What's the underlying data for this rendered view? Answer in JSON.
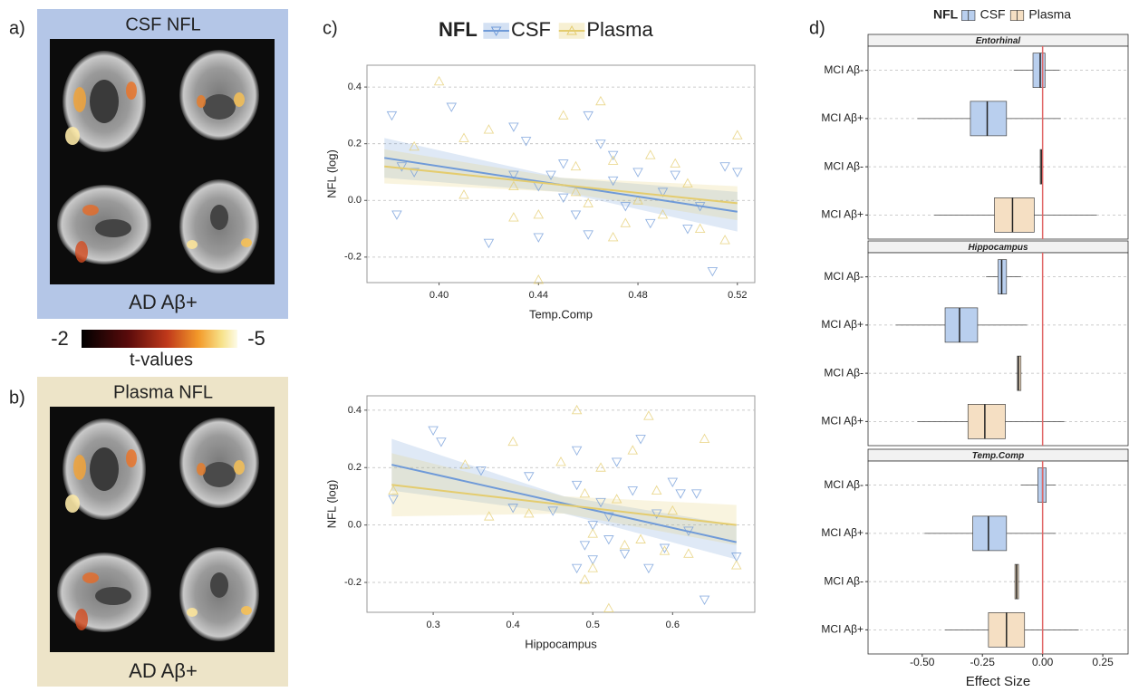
{
  "panel_labels": [
    "a)",
    "b)",
    "c)",
    "d)"
  ],
  "brain_maps": [
    {
      "title": "CSF NFL",
      "caption": "AD Aβ+"
    },
    {
      "title": "Plasma NFL",
      "caption": "AD Aβ+"
    }
  ],
  "colorbar": {
    "range": [
      -2,
      -5
    ],
    "label": "t-values"
  },
  "chart_data": [
    {
      "type": "scatter",
      "legend_title": "NFL",
      "x_label": "Temp.Comp",
      "y_label": "NFL (log)",
      "xlim": [
        0.371,
        0.527
      ],
      "ylim": [
        -0.29,
        0.477
      ],
      "xticks": [
        {
          "value": 0.4,
          "label": "0.40"
        },
        0.44,
        0.48,
        0.52
      ],
      "yticks": [
        0.4,
        0.2,
        {
          "value": 0,
          "label": "0.0"
        },
        -0.2
      ],
      "grid": "y",
      "series": [
        {
          "name": "CSF",
          "color": "#6f9ad8",
          "marker": "triangle-down",
          "x": [
            0.381,
            0.383,
            0.385,
            0.405,
            0.39,
            0.43,
            0.435,
            0.42,
            0.44,
            0.445,
            0.45,
            0.455,
            0.46,
            0.465,
            0.47,
            0.475,
            0.48,
            0.485,
            0.49,
            0.495,
            0.5,
            0.505,
            0.51,
            0.515,
            0.52,
            0.46,
            0.44,
            0.47,
            0.45,
            0.43
          ],
          "values": [
            0.3,
            -0.05,
            0.12,
            0.33,
            0.1,
            0.26,
            0.21,
            -0.15,
            0.05,
            0.09,
            0.13,
            -0.05,
            0.3,
            0.2,
            0.07,
            -0.02,
            0.1,
            -0.08,
            0.03,
            0.09,
            -0.1,
            -0.02,
            -0.25,
            0.12,
            0.1,
            -0.12,
            -0.13,
            0.16,
            0.01,
            0.09
          ],
          "fit": {
            "x": [
              0.378,
              0.52
            ],
            "values": [
              0.15,
              -0.04
            ]
          },
          "band": {
            "x": [
              0.378,
              0.449,
              0.52
            ],
            "lower": [
              0.08,
              0.03,
              -0.11
            ],
            "upper": [
              0.22,
              0.08,
              0.03
            ]
          }
        },
        {
          "name": "Plasma",
          "color": "#e4cc6e",
          "marker": "triangle-up",
          "x": [
            0.4,
            0.39,
            0.41,
            0.42,
            0.43,
            0.44,
            0.45,
            0.455,
            0.46,
            0.465,
            0.47,
            0.475,
            0.48,
            0.485,
            0.49,
            0.495,
            0.5,
            0.505,
            0.515,
            0.52,
            0.44,
            0.455,
            0.47,
            0.43,
            0.41
          ],
          "values": [
            0.42,
            0.19,
            0.22,
            0.25,
            0.05,
            -0.05,
            0.3,
            0.12,
            -0.01,
            0.35,
            0.14,
            -0.08,
            0.0,
            0.16,
            -0.05,
            0.13,
            0.06,
            -0.1,
            -0.14,
            0.23,
            -0.28,
            0.03,
            -0.13,
            -0.06,
            0.02
          ],
          "fit": {
            "x": [
              0.378,
              0.52
            ],
            "values": [
              0.12,
              -0.01
            ]
          },
          "band": {
            "x": [
              0.378,
              0.449,
              0.52
            ],
            "lower": [
              0.06,
              0.03,
              -0.07
            ],
            "upper": [
              0.18,
              0.08,
              0.05
            ]
          }
        }
      ]
    },
    {
      "type": "scatter",
      "x_label": "Hippocampus",
      "y_label": "NFL (log)",
      "xlim": [
        0.217,
        0.703
      ],
      "ylim": [
        -0.304,
        0.45
      ],
      "xticks": [
        0.3,
        0.4,
        0.5,
        0.6
      ],
      "yticks": [
        0.4,
        0.2,
        {
          "value": 0,
          "label": "0.0"
        },
        -0.2
      ],
      "grid": "y",
      "series": [
        {
          "color": "#6f9ad8",
          "marker": "triangle-down",
          "x": [
            0.25,
            0.3,
            0.31,
            0.36,
            0.4,
            0.42,
            0.45,
            0.48,
            0.48,
            0.49,
            0.5,
            0.5,
            0.51,
            0.52,
            0.53,
            0.54,
            0.55,
            0.56,
            0.57,
            0.58,
            0.59,
            0.6,
            0.61,
            0.62,
            0.63,
            0.64,
            0.68,
            0.48,
            0.52
          ],
          "values": [
            0.09,
            0.33,
            0.29,
            0.19,
            0.06,
            0.17,
            0.05,
            0.26,
            0.14,
            -0.07,
            0.0,
            -0.12,
            0.08,
            -0.05,
            0.22,
            -0.1,
            0.12,
            0.3,
            -0.15,
            0.04,
            -0.08,
            0.15,
            0.11,
            -0.02,
            0.11,
            -0.26,
            -0.11,
            -0.15,
            0.03
          ],
          "fit": {
            "x": [
              0.248,
              0.68
            ],
            "values": [
              0.21,
              -0.06
            ]
          },
          "band": {
            "x": [
              0.248,
              0.464,
              0.68
            ],
            "lower": [
              0.12,
              0.04,
              -0.12
            ],
            "upper": [
              0.3,
              0.1,
              0.0
            ]
          }
        },
        {
          "color": "#e4cc6e",
          "marker": "triangle-up",
          "x": [
            0.25,
            0.34,
            0.37,
            0.4,
            0.42,
            0.46,
            0.48,
            0.49,
            0.5,
            0.5,
            0.51,
            0.52,
            0.53,
            0.54,
            0.55,
            0.56,
            0.57,
            0.58,
            0.59,
            0.6,
            0.62,
            0.64,
            0.68,
            0.49
          ],
          "values": [
            0.12,
            0.21,
            0.03,
            0.29,
            0.04,
            0.22,
            0.4,
            0.11,
            -0.03,
            -0.15,
            0.2,
            -0.29,
            0.09,
            -0.07,
            0.26,
            -0.05,
            0.38,
            0.12,
            -0.09,
            0.05,
            -0.1,
            0.3,
            -0.14,
            -0.19
          ],
          "fit": {
            "x": [
              0.248,
              0.68
            ],
            "values": [
              0.14,
              0.0
            ]
          },
          "band": {
            "x": [
              0.248,
              0.464,
              0.68
            ],
            "lower": [
              0.03,
              0.04,
              -0.07
            ],
            "upper": [
              0.25,
              0.1,
              0.07
            ]
          }
        }
      ]
    },
    {
      "type": "box",
      "legend_title": "NFL",
      "x_label": "Effect Size",
      "xlim": [
        -0.725,
        0.355
      ],
      "xticks": [
        {
          "value": -0.5,
          "label": "-0.50"
        },
        -0.25,
        {
          "value": 0,
          "label": "0.00"
        },
        0.25
      ],
      "ref_line": {
        "value": 0,
        "color": "#e06666"
      },
      "grid": "y",
      "series": [
        {
          "name": "CSF",
          "color": "#b9cfee"
        },
        {
          "name": "Plasma",
          "color": "#f5dfc3"
        }
      ],
      "facets": [
        {
          "title": "Entorhinal",
          "boxes": [
            {
              "category": "MCI Aβ-",
              "low": -0.12,
              "q1": -0.04,
              "median": -0.01,
              "q3": 0.01,
              "high": 0.07
            },
            {
              "category": "MCI Aβ+",
              "low": -0.52,
              "q1": -0.3,
              "median": -0.23,
              "q3": -0.15,
              "high": 0.075
            },
            {
              "category": "MCI Aβ-",
              "low": -0.015,
              "q1": -0.01,
              "median": -0.005,
              "q3": 0.0,
              "high": 0.005
            },
            {
              "category": "MCI Aβ+",
              "low": -0.45,
              "q1": -0.2,
              "median": -0.125,
              "q3": -0.035,
              "high": 0.225
            }
          ]
        },
        {
          "title": "Hippocampus",
          "boxes": [
            {
              "category": "MCI Aβ-",
              "low": -0.235,
              "q1": -0.185,
              "median": -0.17,
              "q3": -0.15,
              "high": -0.09
            },
            {
              "category": "MCI Aβ+",
              "low": -0.61,
              "q1": -0.405,
              "median": -0.345,
              "q3": -0.27,
              "high": -0.065
            },
            {
              "category": "MCI Aβ-",
              "low": -0.11,
              "q1": -0.105,
              "median": -0.1,
              "q3": -0.09,
              "high": -0.085
            },
            {
              "category": "MCI Aβ+",
              "low": -0.52,
              "q1": -0.31,
              "median": -0.24,
              "q3": -0.155,
              "high": 0.09
            }
          ]
        },
        {
          "title": "Temp.Comp",
          "boxes": [
            {
              "category": "MCI Aβ-",
              "low": -0.09,
              "q1": -0.02,
              "median": 0.0,
              "q3": 0.015,
              "high": 0.055
            },
            {
              "category": "MCI Aβ+",
              "low": -0.49,
              "q1": -0.29,
              "median": -0.225,
              "q3": -0.15,
              "high": 0.055
            },
            {
              "category": "MCI Aβ-",
              "low": -0.12,
              "q1": -0.115,
              "median": -0.108,
              "q3": -0.1,
              "high": -0.095
            },
            {
              "category": "MCI Aβ+",
              "low": -0.405,
              "q1": -0.225,
              "median": -0.15,
              "q3": -0.075,
              "high": 0.15
            }
          ]
        }
      ]
    }
  ]
}
